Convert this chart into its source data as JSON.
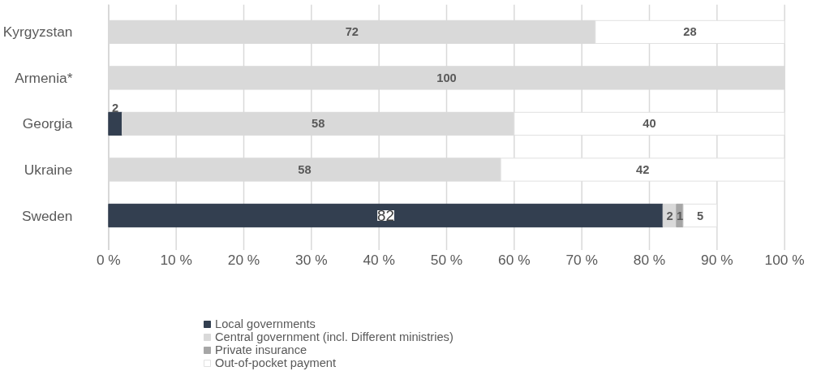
{
  "chart_data": {
    "type": "bar",
    "orientation": "horizontal",
    "stacked": true,
    "categories": [
      "Kyrgyzstan",
      "Armenia*",
      "Georgia",
      "Ukraine",
      "Sweden"
    ],
    "series": [
      {
        "name": "Local governments",
        "color": "#333f50",
        "values": [
          null,
          null,
          2,
          null,
          82
        ]
      },
      {
        "name": "Central government (incl. Different ministries)",
        "color": "#d9d9d9",
        "values": [
          72,
          100,
          58,
          58,
          2
        ]
      },
      {
        "name": "Private insurance",
        "color": "#a6a6a6",
        "values": [
          null,
          null,
          null,
          null,
          1
        ]
      },
      {
        "name": "Out-of-pocket payment",
        "color": "#ffffff",
        "values": [
          28,
          null,
          40,
          42,
          5
        ]
      }
    ],
    "xlim": [
      0,
      100
    ],
    "xticks": [
      {
        "value": 0,
        "label": "0 %"
      },
      {
        "value": 10,
        "label": "10 %"
      },
      {
        "value": 20,
        "label": "20 %"
      },
      {
        "value": 30,
        "label": "30 %"
      },
      {
        "value": 40,
        "label": "40 %"
      },
      {
        "value": 50,
        "label": "50 %"
      },
      {
        "value": 60,
        "label": "60 %"
      },
      {
        "value": 70,
        "label": "70 %"
      },
      {
        "value": 80,
        "label": "80 %"
      },
      {
        "value": 90,
        "label": "90 %"
      },
      {
        "value": 100,
        "label": "100 %"
      }
    ],
    "grid": "x",
    "legend": "bottom",
    "data_labels": true
  }
}
